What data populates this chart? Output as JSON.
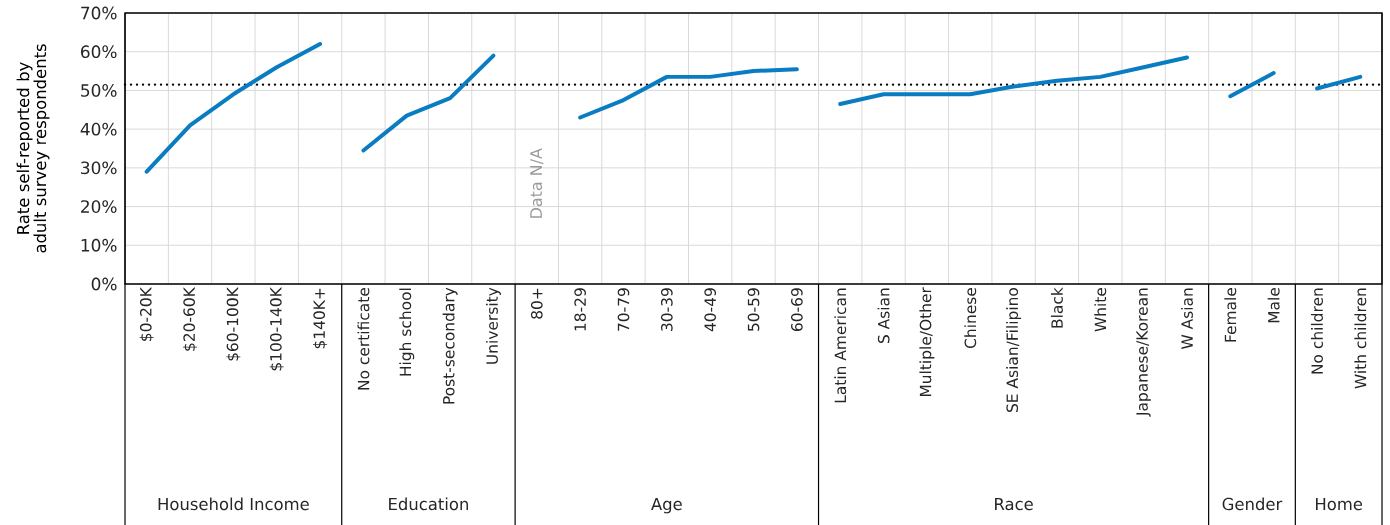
{
  "chart_data": {
    "type": "line",
    "ylabel": "Rate self-reported by adult survey respondents",
    "categories": [
      "$0-20K",
      "$20-60K",
      "$60-100K",
      "$100-140K",
      "$140K+",
      "No certificate",
      "High school",
      "Post-secondary",
      "University",
      "80+",
      "18-29",
      "70-79",
      "30-39",
      "40-49",
      "50-59",
      "60-69",
      "Latin American",
      "S Asian",
      "Multiple/Other",
      "Chinese",
      "SE Asian/Filipino",
      "Black",
      "White",
      "Japanese/Korean",
      "W Asian",
      "Female",
      "Male",
      "No children",
      "With children"
    ],
    "series": [
      {
        "color": "#0a7cc1",
        "values": [
          29,
          41,
          49,
          56,
          62,
          null,
          null,
          null,
          null,
          null,
          null,
          null,
          null,
          null,
          null,
          null,
          null,
          null,
          null,
          null,
          null,
          null,
          null,
          null,
          null,
          null,
          null,
          null,
          null
        ]
      },
      {
        "color": "#0a7cc1",
        "values": [
          null,
          null,
          null,
          null,
          null,
          34.5,
          43.5,
          48,
          59,
          null,
          null,
          null,
          null,
          null,
          null,
          null,
          null,
          null,
          null,
          null,
          null,
          null,
          null,
          null,
          null,
          null,
          null,
          null,
          null
        ]
      },
      {
        "color": "#0a7cc1",
        "values": [
          null,
          null,
          null,
          null,
          null,
          null,
          null,
          null,
          null,
          null,
          43,
          47.5,
          53.5,
          53.5,
          55,
          55.5,
          null,
          null,
          null,
          null,
          null,
          null,
          null,
          null,
          null,
          null,
          null,
          null,
          null
        ]
      },
      {
        "color": "#0a7cc1",
        "values": [
          null,
          null,
          null,
          null,
          null,
          null,
          null,
          null,
          null,
          null,
          null,
          null,
          null,
          null,
          null,
          null,
          46.5,
          49,
          49,
          49,
          51,
          52.5,
          53.5,
          56,
          58.5,
          null,
          null,
          null,
          null
        ]
      },
      {
        "color": "#0a7cc1",
        "values": [
          null,
          null,
          null,
          null,
          null,
          null,
          null,
          null,
          null,
          null,
          null,
          null,
          null,
          null,
          null,
          null,
          null,
          null,
          null,
          null,
          null,
          null,
          null,
          null,
          null,
          48.5,
          54.5,
          null,
          null
        ]
      },
      {
        "color": "#0a7cc1",
        "values": [
          null,
          null,
          null,
          null,
          null,
          null,
          null,
          null,
          null,
          null,
          null,
          null,
          null,
          null,
          null,
          null,
          null,
          null,
          null,
          null,
          null,
          null,
          null,
          null,
          null,
          null,
          null,
          50.5,
          53.5
        ]
      }
    ],
    "annotations": [
      "Household Income",
      "Education",
      "Age",
      "Race",
      "Gender",
      "Home",
      "Data N/A"
    ],
    "ref_lines": [
      {
        "axis": "y",
        "value": 51.5,
        "color": "#000000",
        "line_style": "dotted"
      }
    ],
    "ylim": [
      0,
      70
    ],
    "yticks": [
      {
        "value": 0,
        "label": "0%"
      },
      {
        "value": 10,
        "label": "10%"
      },
      {
        "value": 20,
        "label": "20%"
      },
      {
        "value": 30,
        "label": "30%"
      },
      {
        "value": 40,
        "label": "40%"
      },
      {
        "value": 50,
        "label": "50%"
      },
      {
        "value": 60,
        "label": "60%"
      },
      {
        "value": 70,
        "label": "70%"
      }
    ],
    "grid": true,
    "marker": "none",
    "line_style": "solid"
  }
}
